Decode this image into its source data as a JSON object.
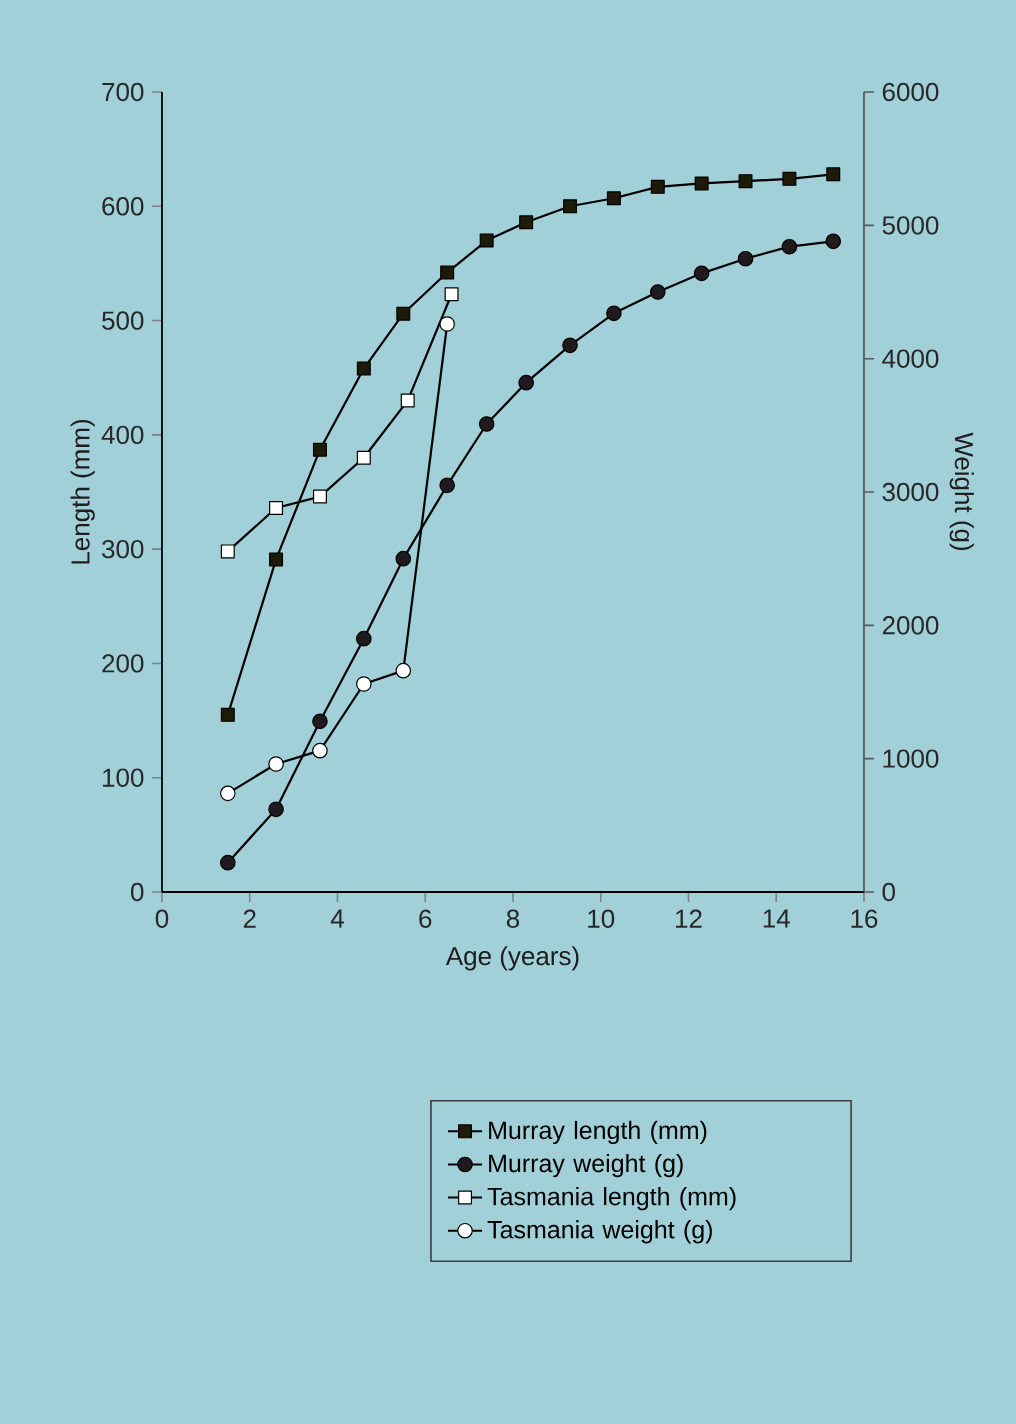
{
  "chart_data": {
    "type": "line",
    "xlabel": "Age (years)",
    "ylabel": "Length (mm)",
    "y2label": "Weight (g)",
    "xlim": [
      0,
      16
    ],
    "xticks": [
      0,
      2,
      4,
      6,
      8,
      10,
      12,
      14,
      16
    ],
    "ylim": [
      0,
      700
    ],
    "yticks": [
      0,
      100,
      200,
      300,
      400,
      500,
      600,
      700
    ],
    "y2lim": [
      0,
      6000
    ],
    "y2ticks": [
      0,
      1000,
      2000,
      3000,
      4000,
      5000,
      6000
    ],
    "legend": "bottom right",
    "line_style": "solid",
    "series": [
      {
        "name": "Murray length (mm)",
        "color": "#1e1a0a",
        "marker": "square",
        "x": [
          1.5,
          2.6,
          3.6,
          4.6,
          5.5,
          6.5,
          7.4,
          8.3,
          9.3,
          10.3,
          11.3,
          12.3,
          13.3,
          14.3,
          15.3
        ],
        "values": [
          155,
          291,
          387,
          458,
          506,
          542,
          570,
          586,
          600,
          607,
          617,
          620,
          622,
          624,
          628
        ]
      },
      {
        "name": "Murray weight (g)",
        "color": "#1e1a1e",
        "marker": "circle",
        "axis": "y2",
        "x": [
          1.5,
          2.6,
          3.6,
          4.6,
          5.5,
          6.5,
          7.4,
          8.3,
          9.3,
          10.3,
          11.3,
          12.3,
          13.3,
          14.3,
          15.3
        ],
        "values": [
          220,
          620,
          1280,
          1900,
          2500,
          3050,
          3510,
          3820,
          4100,
          4340,
          4500,
          4640,
          4750,
          4840,
          4880
        ]
      },
      {
        "name": "Tasmania length (mm)",
        "color": "#ffffff",
        "marker": "square",
        "x": [
          1.5,
          2.6,
          3.6,
          4.6,
          5.6,
          6.6
        ],
        "values": [
          298,
          336,
          346,
          380,
          430,
          523
        ]
      },
      {
        "name": "Tasmania weight (g)",
        "color": "#ffffff",
        "marker": "circle",
        "axis": "y2",
        "x": [
          1.5,
          2.6,
          3.6,
          4.6,
          5.5,
          6.5
        ],
        "values": [
          740,
          960,
          1060,
          1560,
          1660,
          4260
        ]
      }
    ]
  }
}
